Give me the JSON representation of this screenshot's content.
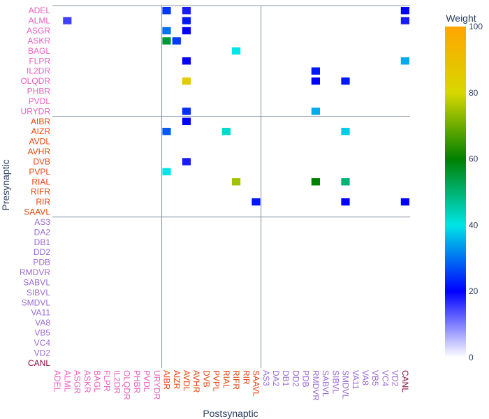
{
  "chart_data": {
    "type": "heatmap",
    "xlabel": "Postsynaptic",
    "ylabel": "Presynaptic",
    "colorbar": {
      "title": "Weight",
      "range": [
        0,
        100
      ],
      "ticks": [
        "0",
        "20",
        "40",
        "60",
        "80",
        "100"
      ],
      "colorscale": [
        [
          0.0,
          "#ffffff"
        ],
        [
          0.2,
          "#0000ff"
        ],
        [
          0.4,
          "#00e5e5"
        ],
        [
          0.6,
          "#008000"
        ],
        [
          0.8,
          "#d8d800"
        ],
        [
          1.0,
          "#ffa500"
        ]
      ]
    },
    "group_colors": {
      "sensory": "#ea5fbf",
      "inter": "#e8430c",
      "motor": "#9a6ad0",
      "other": "#8b0a3a"
    },
    "group_boundaries": [
      "URYDR|AIBR",
      "SAAVL|AS3"
    ],
    "y_tick_labels": [
      {
        "text": "ADEL",
        "group": "sensory"
      },
      {
        "text": "ALML",
        "group": "sensory"
      },
      {
        "text": "ASGR",
        "group": "sensory"
      },
      {
        "text": "ASKR",
        "group": "sensory"
      },
      {
        "text": "BAGL",
        "group": "sensory"
      },
      {
        "text": "FLPR",
        "group": "sensory"
      },
      {
        "text": "IL2DR",
        "group": "sensory"
      },
      {
        "text": "OLQDR",
        "group": "sensory"
      },
      {
        "text": "PHBR",
        "group": "sensory"
      },
      {
        "text": "PVDL",
        "group": "sensory"
      },
      {
        "text": "URYDR",
        "group": "sensory"
      },
      {
        "text": "AIBR",
        "group": "inter"
      },
      {
        "text": "AIZR",
        "group": "inter"
      },
      {
        "text": "AVDL",
        "group": "inter"
      },
      {
        "text": "AVHR",
        "group": "inter"
      },
      {
        "text": "DVB",
        "group": "inter"
      },
      {
        "text": "PVPL",
        "group": "inter"
      },
      {
        "text": "RIAL",
        "group": "inter"
      },
      {
        "text": "RIFR",
        "group": "inter"
      },
      {
        "text": "RIR",
        "group": "inter"
      },
      {
        "text": "SAAVL",
        "group": "inter"
      },
      {
        "text": "AS3",
        "group": "motor"
      },
      {
        "text": "DA2",
        "group": "motor"
      },
      {
        "text": "DB1",
        "group": "motor"
      },
      {
        "text": "DD2",
        "group": "motor"
      },
      {
        "text": "PDB",
        "group": "motor"
      },
      {
        "text": "RMDVR",
        "group": "motor"
      },
      {
        "text": "SABVL",
        "group": "motor"
      },
      {
        "text": "SIBVL",
        "group": "motor"
      },
      {
        "text": "SMDVL",
        "group": "motor"
      },
      {
        "text": "VA11",
        "group": "motor"
      },
      {
        "text": "VA8",
        "group": "motor"
      },
      {
        "text": "VB5",
        "group": "motor"
      },
      {
        "text": "VC4",
        "group": "motor"
      },
      {
        "text": "VD2",
        "group": "motor"
      },
      {
        "text": "CANL",
        "group": "other"
      }
    ],
    "x_tick_labels": [
      {
        "text": "ADEL",
        "group": "sensory"
      },
      {
        "text": "ALML",
        "group": "sensory"
      },
      {
        "text": "ASGR",
        "group": "sensory"
      },
      {
        "text": "ASKR",
        "group": "sensory"
      },
      {
        "text": "BAGL",
        "group": "sensory"
      },
      {
        "text": "FLPR",
        "group": "sensory"
      },
      {
        "text": "IL2DR",
        "group": "sensory"
      },
      {
        "text": "OLQDR",
        "group": "sensory"
      },
      {
        "text": "PHBR",
        "group": "sensory"
      },
      {
        "text": "PVDL",
        "group": "sensory"
      },
      {
        "text": "URYDR",
        "group": "sensory"
      },
      {
        "text": "AIBR",
        "group": "inter"
      },
      {
        "text": "AIZR",
        "group": "inter"
      },
      {
        "text": "AVDL",
        "group": "inter"
      },
      {
        "text": "AVHR",
        "group": "inter"
      },
      {
        "text": "DVB",
        "group": "inter"
      },
      {
        "text": "PVPL",
        "group": "inter"
      },
      {
        "text": "RIAL",
        "group": "inter"
      },
      {
        "text": "RIFR",
        "group": "inter"
      },
      {
        "text": "RIR",
        "group": "inter"
      },
      {
        "text": "SAAVL",
        "group": "inter"
      },
      {
        "text": "AS3",
        "group": "motor"
      },
      {
        "text": "DA2",
        "group": "motor"
      },
      {
        "text": "DB1",
        "group": "motor"
      },
      {
        "text": "DD2",
        "group": "motor"
      },
      {
        "text": "PDB",
        "group": "motor"
      },
      {
        "text": "RMDVR",
        "group": "motor"
      },
      {
        "text": "SABVL",
        "group": "motor"
      },
      {
        "text": "SIBVL",
        "group": "motor"
      },
      {
        "text": "SMDVL",
        "group": "motor"
      },
      {
        "text": "VA11",
        "group": "motor"
      },
      {
        "text": "VA8",
        "group": "motor"
      },
      {
        "text": "VB5",
        "group": "motor"
      },
      {
        "text": "VC4",
        "group": "motor"
      },
      {
        "text": "VD2",
        "group": "motor"
      },
      {
        "text": "CANL",
        "group": "other"
      }
    ],
    "notable_cells": [
      {
        "pre": "ADEL",
        "post": "AIBR",
        "value": 25
      },
      {
        "pre": "ADEL",
        "post": "AVDL",
        "value": 18
      },
      {
        "pre": "ADEL",
        "post": "CANL",
        "value": 20
      },
      {
        "pre": "ALML",
        "post": "ALML",
        "value": 15
      },
      {
        "pre": "ALML",
        "post": "AVDL",
        "value": 22
      },
      {
        "pre": "ALML",
        "post": "CANL",
        "value": 18
      },
      {
        "pre": "ASGR",
        "post": "AIBR",
        "value": 30
      },
      {
        "pre": "ASGR",
        "post": "AVDL",
        "value": 20
      },
      {
        "pre": "ASKR",
        "post": "AIBR",
        "value": 55
      },
      {
        "pre": "ASKR",
        "post": "AIZR",
        "value": 25
      },
      {
        "pre": "BAGL",
        "post": "RIFR",
        "value": 40
      },
      {
        "pre": "FLPR",
        "post": "AVDL",
        "value": 20
      },
      {
        "pre": "FLPR",
        "post": "CANL",
        "value": 35
      },
      {
        "pre": "IL2DR",
        "post": "RMDVR",
        "value": 22
      },
      {
        "pre": "OLQDR",
        "post": "AVDL",
        "value": 85
      },
      {
        "pre": "OLQDR",
        "post": "RMDVR",
        "value": 20
      },
      {
        "pre": "OLQDR",
        "post": "SMDVL",
        "value": 22
      },
      {
        "pre": "URYDR",
        "post": "AVDL",
        "value": 24
      },
      {
        "pre": "URYDR",
        "post": "RMDVR",
        "value": 35
      },
      {
        "pre": "AIBR",
        "post": "AVDL",
        "value": 20
      },
      {
        "pre": "AIZR",
        "post": "AIBR",
        "value": 28
      },
      {
        "pre": "AIZR",
        "post": "RIAL",
        "value": 42
      },
      {
        "pre": "AIZR",
        "post": "SMDVL",
        "value": 38
      },
      {
        "pre": "DVB",
        "post": "AVDL",
        "value": 18
      },
      {
        "pre": "PVPL",
        "post": "AIBR",
        "value": 40
      },
      {
        "pre": "RIAL",
        "post": "RMDVR",
        "value": 60
      },
      {
        "pre": "RIAL",
        "post": "SMDVL",
        "value": 50
      },
      {
        "pre": "RIAL",
        "post": "RIFR",
        "value": 75
      },
      {
        "pre": "RIR",
        "post": "SAAVL",
        "value": 22
      },
      {
        "pre": "RIR",
        "post": "SMDVL",
        "value": 20
      },
      {
        "pre": "RIR",
        "post": "CANL",
        "value": 20
      }
    ]
  }
}
